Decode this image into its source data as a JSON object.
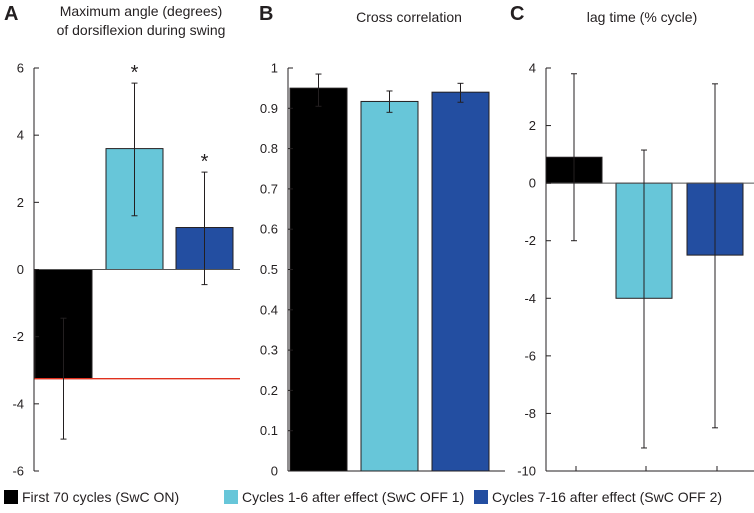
{
  "colors": {
    "black": "#000000",
    "light": "#67c6d9",
    "dark": "#234ea1",
    "ref_line": "#e0301e",
    "axis": "#231f20"
  },
  "legend": [
    {
      "label": "First 70 cycles (SwC ON)",
      "color_key": "black"
    },
    {
      "label": "Cycles 1-6 after effect (SwC OFF 1)",
      "color_key": "light"
    },
    {
      "label": "Cycles 7-16 after effect (SwC OFF 2)",
      "color_key": "dark"
    }
  ],
  "chart_data": [
    {
      "panel": "A",
      "type": "bar",
      "title": [
        "Maximum angle (degrees)",
        "of dorsiflexion during swing"
      ],
      "categories": [
        "First 70 cycles (SwC ON)",
        "Cycles 1-6 after effect (SwC OFF 1)",
        "Cycles 7-16 after effect (SwC OFF 2)"
      ],
      "values": [
        -3.25,
        3.6,
        1.25
      ],
      "error_low": [
        -5.05,
        1.6,
        -0.45
      ],
      "error_high": [
        -1.45,
        5.55,
        2.9
      ],
      "significance": [
        "",
        "*",
        "*"
      ],
      "ylim": [
        -6,
        6
      ],
      "yticks": [
        -6,
        -4,
        -2,
        0,
        2,
        4,
        6
      ],
      "reference_line": -3.25,
      "zero_line": true
    },
    {
      "panel": "B",
      "type": "bar",
      "title": [
        "Cross correlation"
      ],
      "categories": [
        "First 70 cycles (SwC ON)",
        "Cycles 1-6 after effect (SwC OFF 1)",
        "Cycles 7-16 after effect (SwC OFF 2)"
      ],
      "values": [
        0.95,
        0.917,
        0.94
      ],
      "error_low": [
        0.905,
        0.89,
        0.915
      ],
      "error_high": [
        0.985,
        0.943,
        0.962
      ],
      "ylim": [
        0,
        1
      ],
      "yticks": [
        0,
        0.1,
        0.2,
        0.3,
        0.4,
        0.5,
        0.6,
        0.7,
        0.8,
        0.9,
        1
      ],
      "ytick_labels": [
        "0",
        "0.1",
        "0.2",
        "0.3",
        "0.4",
        "0.5",
        "0.6",
        "0.7",
        "0.8",
        "0.9",
        "1"
      ]
    },
    {
      "panel": "C",
      "type": "bar",
      "title": [
        "lag time (% cycle)"
      ],
      "categories": [
        "First 70 cycles (SwC ON)",
        "Cycles 1-6 after effect (SwC OFF 1)",
        "Cycles 7-16 after effect (SwC OFF 2)"
      ],
      "values": [
        0.9,
        -4.0,
        -2.5
      ],
      "error_low": [
        -2.0,
        -9.2,
        -8.5
      ],
      "error_high": [
        3.8,
        1.15,
        3.45
      ],
      "ylim": [
        -10,
        4
      ],
      "yticks": [
        -10,
        -8,
        -6,
        -4,
        -2,
        0,
        2,
        4
      ],
      "zero_line": true,
      "xticks": true
    }
  ]
}
